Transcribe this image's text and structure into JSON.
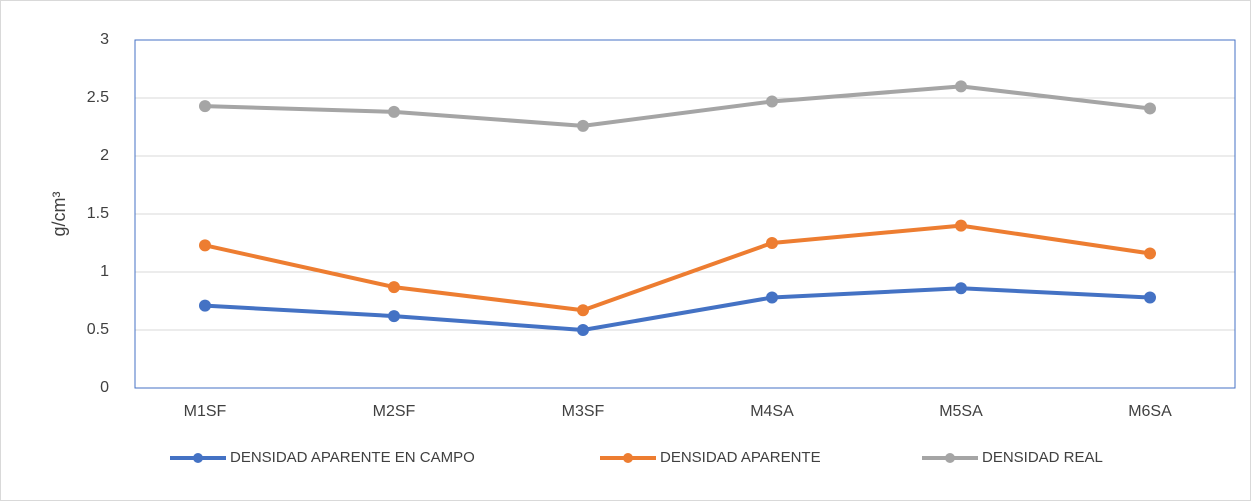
{
  "chart_data": {
    "type": "line",
    "y_label": "g/cm³",
    "categories": [
      "M1SF",
      "M2SF",
      "M3SF",
      "M4SA",
      "M5SA",
      "M6SA"
    ],
    "series": [
      {
        "name": "DENSIDAD APARENTE EN CAMPO",
        "color": "#4472c4",
        "values": [
          0.71,
          0.62,
          0.5,
          0.78,
          0.86,
          0.78
        ]
      },
      {
        "name": "DENSIDAD APARENTE",
        "color": "#ed7d31",
        "values": [
          1.23,
          0.87,
          0.67,
          1.25,
          1.4,
          1.16
        ]
      },
      {
        "name": "DENSIDAD REAL",
        "color": "#a5a5a5",
        "values": [
          2.43,
          2.38,
          2.26,
          2.47,
          2.6,
          2.41
        ]
      }
    ],
    "ylim": [
      0,
      3
    ],
    "yticks": [
      0,
      0.5,
      1,
      1.5,
      2,
      2.5,
      3
    ],
    "grid": true,
    "legend": "bottom"
  }
}
